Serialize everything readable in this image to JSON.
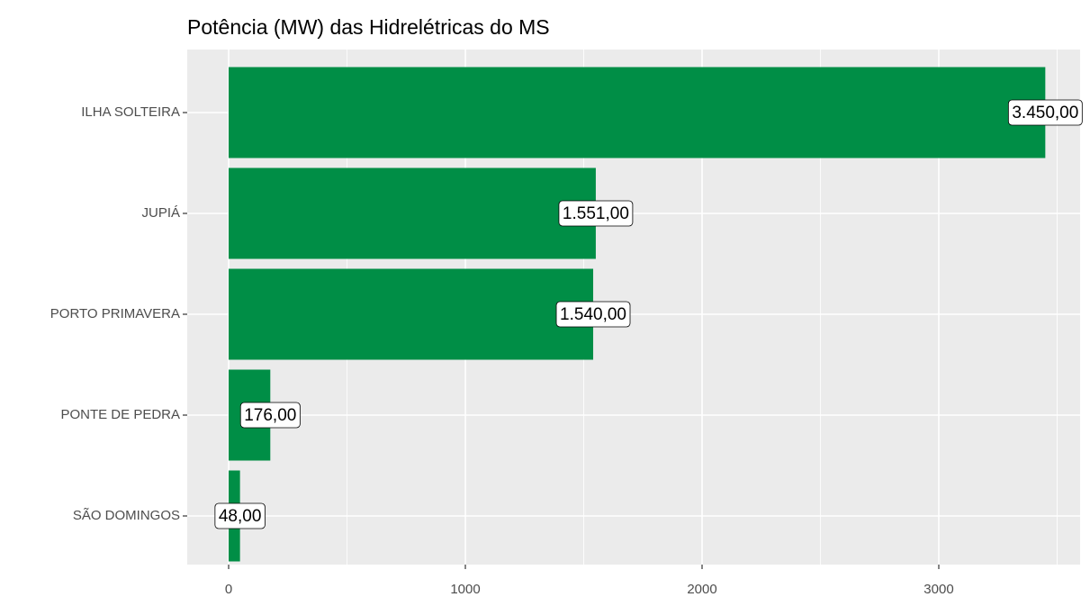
{
  "chart_data": {
    "type": "bar",
    "orientation": "horizontal",
    "title": "Potência (MW) das Hidrelétricas do MS",
    "categories": [
      "ILHA SOLTEIRA",
      "JUPIÁ",
      "PORTO PRIMAVERA",
      "PONTE DE PEDRA",
      "SÃO DOMINGOS"
    ],
    "values": [
      3450,
      1551,
      1540,
      176,
      48
    ],
    "value_labels": [
      "3.450,00",
      "1.551,00",
      "1.540,00",
      "176,00",
      "48,00"
    ],
    "color": "#008e46",
    "xlim": [
      -175,
      3597
    ],
    "xticks": [
      0,
      1000,
      2000,
      3000
    ],
    "minor_xticks": [
      500,
      1500,
      2500,
      3500
    ],
    "grid": true
  }
}
